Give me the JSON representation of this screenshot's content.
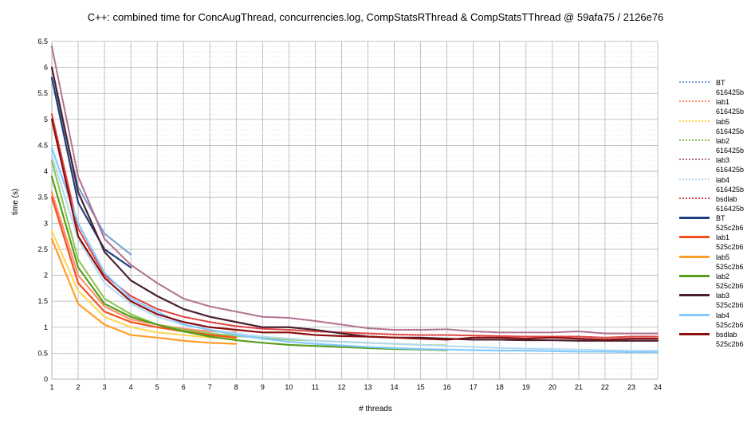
{
  "chart_data": {
    "type": "line",
    "title": "C++: combined time for ConcAugThread, concurrencies.log, CompStatsRThread & CompStatsTThread @ 59afa75 / 2126e76",
    "xlabel": "# threads",
    "ylabel": "time (s)",
    "xlim": [
      1,
      24
    ],
    "ylim": [
      0,
      6.5
    ],
    "xticks": [
      1,
      2,
      3,
      4,
      5,
      6,
      7,
      8,
      9,
      10,
      11,
      12,
      13,
      14,
      15,
      16,
      17,
      18,
      19,
      20,
      21,
      22,
      23,
      24
    ],
    "yticks": [
      "0",
      "0.5",
      "1",
      "1.5",
      "2",
      "2.5",
      "3",
      "3.5",
      "4",
      "4.5",
      "5",
      "5.5",
      "6",
      "6.5"
    ],
    "legend_position": "right",
    "series": [
      {
        "name": "BT",
        "commit": "616425b",
        "color": "#729fcf",
        "style": "dotted",
        "x": [
          1,
          2,
          3,
          4
        ],
        "y": [
          5.8,
          3.7,
          2.8,
          2.4
        ]
      },
      {
        "name": "lab1",
        "commit": "616425b",
        "color": "#ff8a65",
        "style": "dotted",
        "x": [
          1,
          2,
          3,
          4,
          5,
          6,
          7,
          8
        ],
        "y": [
          3.6,
          2.0,
          1.4,
          1.15,
          1.05,
          0.97,
          0.92,
          0.9
        ]
      },
      {
        "name": "lab5",
        "commit": "616425b",
        "color": "#ffd54f",
        "style": "dotted",
        "x": [
          1,
          2,
          3,
          4,
          5,
          6,
          7,
          8
        ],
        "y": [
          2.85,
          1.7,
          1.2,
          1.0,
          0.9,
          0.85,
          0.8,
          0.78
        ]
      },
      {
        "name": "lab2",
        "commit": "616425b",
        "color": "#8bc34a",
        "style": "dotted",
        "x": [
          1,
          2,
          3,
          4,
          5,
          6,
          7,
          8,
          9,
          10,
          11,
          12,
          13,
          14,
          15,
          16
        ],
        "y": [
          4.2,
          2.3,
          1.55,
          1.25,
          1.05,
          0.95,
          0.88,
          0.83,
          0.8,
          0.76,
          0.74,
          0.72,
          0.7,
          0.68,
          0.66,
          0.65
        ]
      },
      {
        "name": "lab3",
        "commit": "616425b",
        "color": "#b07090",
        "style": "dotted",
        "x": [
          1,
          2,
          3,
          4,
          5,
          6,
          7,
          8,
          9,
          10,
          11,
          12,
          13,
          14,
          15,
          16,
          17,
          18,
          19,
          20,
          21,
          22,
          23,
          24
        ],
        "y": [
          6.4,
          3.9,
          2.7,
          2.2,
          1.85,
          1.55,
          1.4,
          1.3,
          1.2,
          1.18,
          1.12,
          1.05,
          0.98,
          0.95,
          0.95,
          0.96,
          0.92,
          0.9,
          0.9,
          0.9,
          0.92,
          0.88,
          0.88,
          0.88
        ]
      },
      {
        "name": "lab4",
        "commit": "616425b",
        "color": "#b3d9f2",
        "style": "dotted",
        "x": [
          1,
          2,
          3,
          4,
          5,
          6,
          7,
          8,
          9,
          10,
          11,
          12,
          13,
          14,
          15,
          16,
          17,
          18,
          19,
          20,
          21,
          22,
          23,
          24
        ],
        "y": [
          4.3,
          2.7,
          1.85,
          1.45,
          1.2,
          1.05,
          0.95,
          0.88,
          0.82,
          0.78,
          0.74,
          0.72,
          0.7,
          0.68,
          0.66,
          0.64,
          0.62,
          0.6,
          0.59,
          0.58,
          0.57,
          0.56,
          0.55,
          0.55
        ]
      },
      {
        "name": "bsdlab",
        "commit": "616425b",
        "color": "#e04040",
        "style": "dotted",
        "x": [
          1,
          2,
          3,
          4,
          5,
          6,
          7,
          8,
          9,
          10,
          11,
          12,
          13,
          14,
          15,
          16,
          17,
          18,
          19,
          20,
          21,
          22,
          23,
          24
        ],
        "y": [
          5.1,
          2.9,
          2.0,
          1.6,
          1.35,
          1.2,
          1.1,
          1.02,
          0.97,
          0.95,
          0.92,
          0.9,
          0.88,
          0.86,
          0.85,
          0.85,
          0.84,
          0.83,
          0.82,
          0.82,
          0.82,
          0.8,
          0.82,
          0.82
        ]
      },
      {
        "name": "BT",
        "commit": "525c2b6",
        "color": "#1f3f7a",
        "style": "solid",
        "x": [
          1,
          2,
          3,
          4
        ],
        "y": [
          5.8,
          3.4,
          2.5,
          2.15
        ]
      },
      {
        "name": "lab1",
        "commit": "525c2b6",
        "color": "#f4511e",
        "style": "solid",
        "x": [
          1,
          2,
          3,
          4,
          5,
          6,
          7,
          8
        ],
        "y": [
          3.5,
          1.85,
          1.3,
          1.1,
          1.0,
          0.92,
          0.85,
          0.8
        ]
      },
      {
        "name": "lab5",
        "commit": "525c2b6",
        "color": "#ff9f2a",
        "style": "solid",
        "x": [
          1,
          2,
          3,
          4,
          5,
          6,
          7,
          8
        ],
        "y": [
          2.7,
          1.45,
          1.05,
          0.85,
          0.8,
          0.74,
          0.7,
          0.68
        ]
      },
      {
        "name": "lab2",
        "commit": "525c2b6",
        "color": "#579d1c",
        "style": "solid",
        "x": [
          1,
          2,
          3,
          4,
          5,
          6,
          7,
          8,
          9,
          10,
          11,
          12,
          13,
          14,
          15,
          16
        ],
        "y": [
          3.9,
          2.15,
          1.45,
          1.2,
          1.05,
          0.92,
          0.82,
          0.75,
          0.7,
          0.66,
          0.64,
          0.62,
          0.6,
          0.58,
          0.57,
          0.56
        ]
      },
      {
        "name": "lab3",
        "commit": "525c2b6",
        "color": "#4b1f2f",
        "style": "solid",
        "x": [
          1,
          2,
          3,
          4,
          5,
          6,
          7,
          8,
          9,
          10,
          11,
          12,
          13,
          14,
          15,
          16,
          17,
          18,
          19,
          20,
          21,
          22,
          23,
          24
        ],
        "y": [
          6.0,
          3.6,
          2.45,
          1.9,
          1.6,
          1.35,
          1.2,
          1.1,
          1.0,
          1.0,
          0.95,
          0.88,
          0.82,
          0.8,
          0.8,
          0.78,
          0.76,
          0.76,
          0.75,
          0.75,
          0.74,
          0.74,
          0.74,
          0.74
        ]
      },
      {
        "name": "lab4",
        "commit": "525c2b6",
        "color": "#83caff",
        "style": "solid",
        "x": [
          1,
          2,
          3,
          4,
          5,
          6,
          7,
          8,
          9,
          10,
          11,
          12,
          13,
          14,
          15,
          16,
          17,
          18,
          19,
          20,
          21,
          22,
          23,
          24
        ],
        "y": [
          4.45,
          3.0,
          2.05,
          1.55,
          1.3,
          1.05,
          0.95,
          0.85,
          0.78,
          0.72,
          0.68,
          0.65,
          0.62,
          0.6,
          0.58,
          0.57,
          0.56,
          0.55,
          0.55,
          0.54,
          0.53,
          0.53,
          0.52,
          0.52
        ]
      },
      {
        "name": "bsdlab",
        "commit": "525c2b6",
        "color": "#8b0e0e",
        "style": "solid",
        "x": [
          1,
          2,
          3,
          4,
          5,
          6,
          7,
          8,
          9,
          10,
          11,
          12,
          13,
          14,
          15,
          16,
          17,
          18,
          19,
          20,
          21,
          22,
          23,
          24
        ],
        "y": [
          5.0,
          2.75,
          1.95,
          1.5,
          1.25,
          1.1,
          1.0,
          0.95,
          0.9,
          0.9,
          0.85,
          0.83,
          0.82,
          0.8,
          0.78,
          0.76,
          0.8,
          0.8,
          0.78,
          0.8,
          0.78,
          0.76,
          0.78,
          0.78
        ]
      }
    ]
  }
}
